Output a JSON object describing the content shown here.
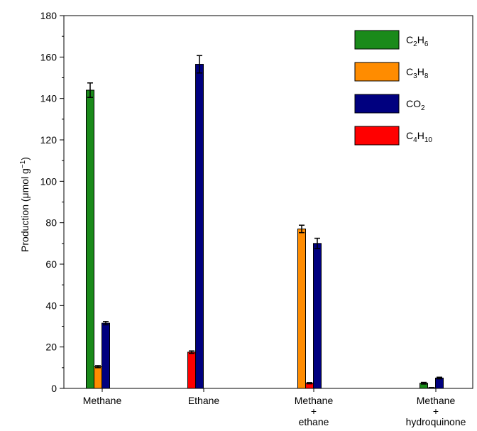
{
  "chart_data": {
    "type": "bar",
    "title": "",
    "xlabel": "",
    "ylabel": "Production (μmol g",
    "ylabel_sup": "−1",
    "ylabel_end": ")",
    "ylim": [
      0,
      180
    ],
    "yticks": [
      0,
      20,
      40,
      60,
      80,
      100,
      120,
      140,
      160,
      180
    ],
    "ytick_labels": [
      "0",
      "20",
      "40",
      "60",
      "80",
      "100",
      "120",
      "140",
      "160",
      "180"
    ],
    "grid": false,
    "legend_position": "top-right",
    "categories": [
      [
        "Methane"
      ],
      [
        "Ethane"
      ],
      [
        "Methane",
        "+",
        "ethane"
      ],
      [
        "Methane",
        "+",
        "hydroquinone"
      ]
    ],
    "series": [
      {
        "name": "C2H6",
        "label_main": "C",
        "label_parts": [
          [
            "C",
            ""
          ],
          [
            "2",
            "sub"
          ],
          [
            "H",
            ""
          ],
          [
            "6",
            "sub"
          ]
        ],
        "color": "#1a8a1a",
        "values": [
          144,
          0,
          0,
          2.5
        ],
        "errors": [
          3.5,
          0,
          0,
          0.4
        ]
      },
      {
        "name": "C3H8",
        "label_parts": [
          [
            "C",
            ""
          ],
          [
            "3",
            "sub"
          ],
          [
            "H",
            ""
          ],
          [
            "8",
            "sub"
          ]
        ],
        "color": "#ff8c00",
        "values": [
          10.5,
          0,
          77,
          0.3
        ],
        "errors": [
          0.5,
          0,
          1.8,
          0.1
        ]
      },
      {
        "name": "C4H10",
        "label_parts": [
          [
            "C",
            ""
          ],
          [
            "4",
            "sub"
          ],
          [
            "H",
            ""
          ],
          [
            "10",
            "sub"
          ]
        ],
        "color": "#ff0000",
        "values": [
          0,
          17.5,
          2.5,
          0
        ],
        "errors": [
          0,
          0.6,
          0.3,
          0
        ]
      },
      {
        "name": "CO2",
        "label_parts": [
          [
            "CO",
            ""
          ],
          [
            "2",
            "sub"
          ]
        ],
        "color": "#00007f",
        "values": [
          31.5,
          156.5,
          70,
          5
        ],
        "errors": [
          0.8,
          4.2,
          2.5,
          0.4
        ]
      }
    ],
    "legend_order": [
      "C2H6",
      "C3H8",
      "CO2",
      "C4H10"
    ]
  }
}
